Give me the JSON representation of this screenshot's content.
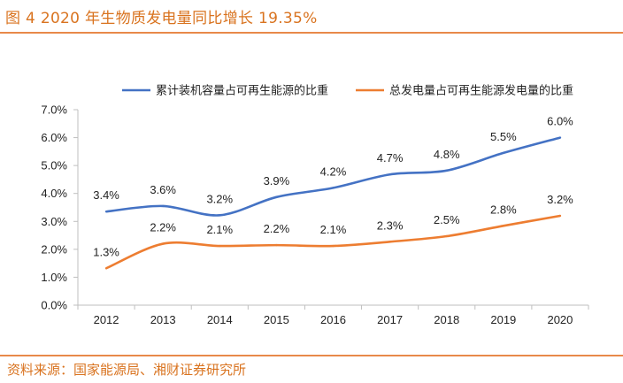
{
  "figure": {
    "title": "图 4 2020 年生物质发电量同比增长 19.35%",
    "source": "资料来源：国家能源局、湘财证券研究所"
  },
  "colors": {
    "accent": "#d9731f",
    "rule": "#e8894a",
    "series1": "#4472c4",
    "series2": "#ed7d31",
    "axis": "#bfbfbf"
  },
  "chart_data": {
    "type": "line",
    "x": [
      "2012",
      "2013",
      "2014",
      "2015",
      "2016",
      "2017",
      "2018",
      "2019",
      "2020"
    ],
    "series": [
      {
        "name": "累计装机容量占可再生能源的比重",
        "values": [
          3.35,
          3.55,
          3.22,
          3.87,
          4.2,
          4.68,
          4.82,
          5.45,
          6.0
        ],
        "labels": [
          "3.4%",
          "3.6%",
          "3.2%",
          "3.9%",
          "4.2%",
          "4.7%",
          "4.8%",
          "5.5%",
          "6.0%"
        ]
      },
      {
        "name": "总发电量占可再生能源发电量的比重",
        "values": [
          1.32,
          2.2,
          2.12,
          2.15,
          2.12,
          2.27,
          2.47,
          2.84,
          3.2
        ],
        "labels": [
          "1.3%",
          "2.2%",
          "2.1%",
          "2.2%",
          "2.1%",
          "2.3%",
          "2.5%",
          "2.8%",
          "3.2%"
        ]
      }
    ],
    "yticks": [
      "0.0%",
      "1.0%",
      "2.0%",
      "3.0%",
      "4.0%",
      "5.0%",
      "6.0%",
      "7.0%"
    ],
    "ylim": [
      0,
      7
    ],
    "grid": false,
    "legend": "top"
  }
}
